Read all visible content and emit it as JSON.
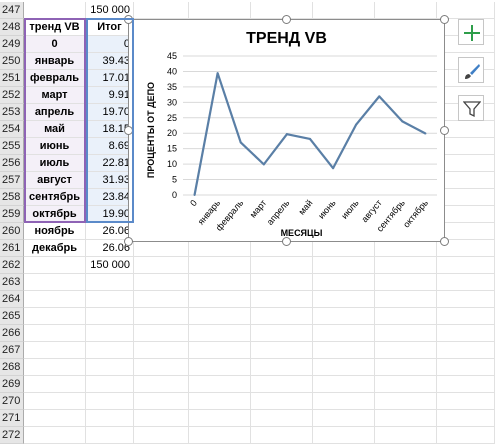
{
  "rows": [
    {
      "num": "247",
      "a": "",
      "b": "150 000"
    },
    {
      "num": "248",
      "a": "тренд VB",
      "b": "Итог"
    },
    {
      "num": "249",
      "a": "0",
      "b": "0"
    },
    {
      "num": "250",
      "a": "январь",
      "b": "39.43"
    },
    {
      "num": "251",
      "a": "февраль",
      "b": "17.01"
    },
    {
      "num": "252",
      "a": "март",
      "b": "9.91"
    },
    {
      "num": "253",
      "a": "апрель",
      "b": "19.70"
    },
    {
      "num": "254",
      "a": "май",
      "b": "18.15"
    },
    {
      "num": "255",
      "a": "июнь",
      "b": "8.69"
    },
    {
      "num": "256",
      "a": "июль",
      "b": "22.81"
    },
    {
      "num": "257",
      "a": "август",
      "b": "31.93"
    },
    {
      "num": "258",
      "a": "сентябрь",
      "b": "23.84"
    },
    {
      "num": "259",
      "a": "октябрь",
      "b": "19.90"
    },
    {
      "num": "260",
      "a": "ноябрь",
      "b": "26.06"
    },
    {
      "num": "261",
      "a": "декабрь",
      "b": "26.06"
    },
    {
      "num": "262",
      "a": "",
      "b": "150 000"
    },
    {
      "num": "263",
      "a": "",
      "b": ""
    },
    {
      "num": "264",
      "a": "",
      "b": ""
    },
    {
      "num": "265",
      "a": "",
      "b": ""
    },
    {
      "num": "266",
      "a": "",
      "b": ""
    },
    {
      "num": "267",
      "a": "",
      "b": ""
    },
    {
      "num": "268",
      "a": "",
      "b": ""
    },
    {
      "num": "269",
      "a": "",
      "b": ""
    },
    {
      "num": "270",
      "a": "",
      "b": ""
    },
    {
      "num": "271",
      "a": "",
      "b": ""
    },
    {
      "num": "272",
      "a": "",
      "b": ""
    }
  ],
  "chart_data": {
    "type": "line",
    "title": "ТРЕНД VB",
    "xlabel": "МЕСЯЦЫ",
    "ylabel": "ПРОЦЕНТЫ ОТ ДЕПО",
    "categories": [
      "0",
      "январь",
      "февраль",
      "март",
      "апрель",
      "май",
      "июнь",
      "июль",
      "август",
      "сентябрь",
      "октябрь"
    ],
    "values": [
      0,
      39.43,
      17.01,
      9.91,
      19.7,
      18.15,
      8.69,
      22.81,
      31.93,
      23.84,
      19.9
    ],
    "ylim": [
      0,
      45
    ],
    "yticks": [
      0,
      5,
      10,
      15,
      20,
      25,
      30,
      35,
      40,
      45
    ],
    "grid": true,
    "line_color": "#5a7fa6"
  },
  "side_buttons": [
    {
      "name": "chart-elements-button",
      "icon": "plus-icon"
    },
    {
      "name": "chart-styles-button",
      "icon": "brush-icon"
    },
    {
      "name": "chart-filters-button",
      "icon": "funnel-icon"
    }
  ]
}
